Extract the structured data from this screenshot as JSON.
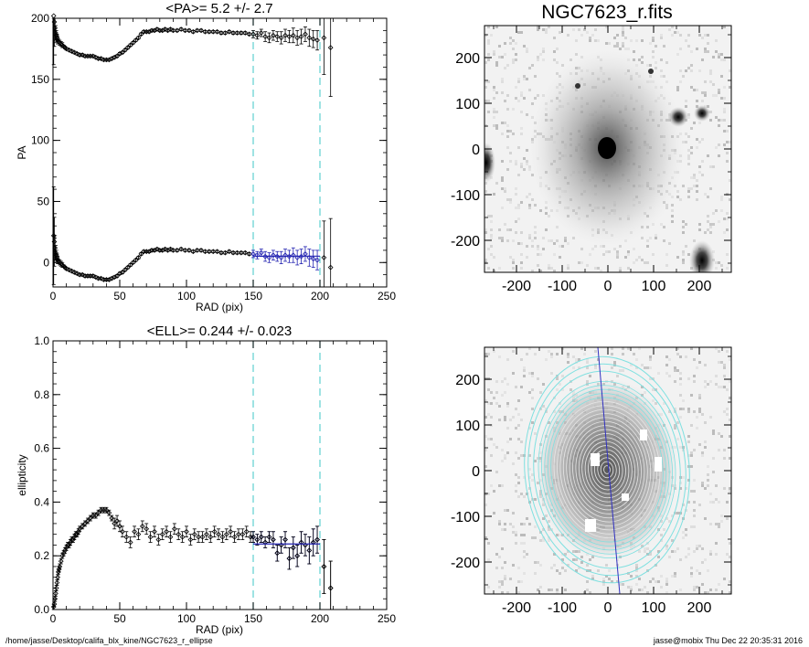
{
  "chart_data": [
    {
      "type": "scatter",
      "title": "<PA>=   5.2 +/-   2.7",
      "xlabel": "RAD (pix)",
      "ylabel": "PA",
      "xlim": [
        0,
        250
      ],
      "ylim": [
        -20,
        200
      ],
      "xticks": [
        "0",
        "50",
        "100",
        "150",
        "200",
        "250"
      ],
      "yticks": [
        "0",
        "50",
        "100",
        "150",
        "200"
      ],
      "vlines": [
        150,
        200
      ],
      "vline_color": "#5fd0d0",
      "mean_line": {
        "x": [
          150,
          200
        ],
        "y": 5.2,
        "color": "#2020b0"
      },
      "series": [
        {
          "color": "#000000",
          "x": [
            0.5,
            1,
            1.5,
            2,
            2.5,
            3,
            3.5,
            4,
            5,
            6,
            7,
            8,
            9,
            10,
            12,
            14,
            16,
            18,
            20,
            22,
            24,
            26,
            28,
            30,
            32,
            34,
            36,
            38,
            40,
            42,
            44,
            46,
            48,
            50,
            52,
            54,
            56,
            58,
            60,
            62,
            64,
            66,
            68,
            70,
            72,
            74,
            76,
            78,
            80,
            82,
            84,
            86,
            88,
            90,
            93,
            96,
            99,
            102,
            105,
            108,
            111,
            114,
            117,
            120,
            123,
            126,
            129,
            132,
            135,
            138,
            141,
            144,
            147
          ],
          "y": [
            22,
            17,
            12,
            8,
            6,
            4,
            2,
            1,
            0,
            -1,
            -2,
            -3,
            -4,
            -5,
            -6,
            -7,
            -8,
            -9,
            -10,
            -10,
            -11,
            -11,
            -11,
            -11,
            -12,
            -13,
            -13,
            -14,
            -14,
            -14,
            -13,
            -12,
            -11,
            -9,
            -8,
            -6,
            -4,
            -2,
            0,
            2,
            4,
            7,
            9,
            9,
            9,
            10,
            10,
            11,
            10,
            10,
            11,
            10,
            11,
            10,
            10,
            11,
            10,
            10,
            9,
            10,
            10,
            9,
            9,
            9,
            9,
            8,
            8,
            9,
            8,
            8,
            8,
            8,
            7
          ],
          "err": [
            40,
            20,
            10,
            6,
            4,
            3,
            3,
            2,
            2,
            2,
            2,
            1,
            1,
            1,
            1,
            1,
            1,
            1,
            1,
            1,
            1,
            1,
            1,
            1,
            1,
            1,
            1,
            1,
            1,
            1,
            1,
            1,
            1,
            1,
            1,
            1,
            1,
            1,
            1,
            1,
            1,
            1,
            1,
            1,
            1,
            1,
            1,
            1,
            1,
            1,
            1,
            1,
            1,
            1,
            1,
            1,
            1,
            1,
            1,
            1,
            1,
            1,
            1,
            1,
            1,
            1,
            1,
            1,
            1,
            1,
            1,
            1,
            1
          ]
        },
        {
          "color": "#2020b0",
          "x": [
            150,
            153,
            156,
            159,
            162,
            165,
            168,
            171,
            174,
            177,
            180,
            183,
            186,
            189,
            192,
            195,
            198
          ],
          "y": [
            7,
            6,
            8,
            5,
            4,
            6,
            5,
            4,
            6,
            5,
            6,
            4,
            5,
            7,
            4,
            3,
            2
          ],
          "err": [
            3,
            3,
            3,
            4,
            4,
            4,
            4,
            5,
            5,
            5,
            6,
            6,
            6,
            6,
            7,
            7,
            8
          ]
        },
        {
          "color": "#000000",
          "x": [
            203,
            208
          ],
          "y": [
            4,
            -4
          ],
          "err": [
            30,
            40
          ]
        },
        {
          "color": "#000000",
          "x": [
            0.5,
            1,
            1.5,
            2,
            2.5,
            3,
            3.5,
            4,
            5,
            6,
            7,
            8,
            9,
            10,
            12,
            14,
            16,
            18,
            20,
            22,
            24,
            26,
            28,
            30,
            32,
            34,
            36,
            38,
            40,
            42,
            44,
            46,
            48,
            50,
            52,
            54,
            56,
            58,
            60,
            62,
            64,
            66,
            68,
            70,
            72,
            74,
            76,
            78,
            80,
            82,
            84,
            86,
            88,
            90,
            93,
            96,
            99,
            102,
            105,
            108,
            111,
            114,
            117,
            120,
            123,
            126,
            129,
            132,
            135,
            138,
            141,
            144,
            147,
            150,
            153,
            156,
            159,
            162,
            165,
            168,
            171,
            174,
            177,
            180,
            183,
            186,
            189,
            192,
            195,
            198,
            203,
            208
          ],
          "y": [
            202,
            197,
            192,
            188,
            186,
            184,
            182,
            181,
            180,
            179,
            178,
            177,
            176,
            175,
            174,
            173,
            172,
            171,
            170,
            170,
            169,
            169,
            169,
            169,
            168,
            167,
            167,
            166,
            166,
            166,
            167,
            168,
            169,
            171,
            172,
            174,
            176,
            178,
            180,
            182,
            184,
            187,
            189,
            189,
            189,
            190,
            190,
            191,
            190,
            190,
            191,
            190,
            191,
            190,
            190,
            191,
            190,
            190,
            189,
            190,
            190,
            189,
            189,
            189,
            189,
            188,
            188,
            189,
            188,
            188,
            188,
            188,
            187,
            187,
            186,
            188,
            185,
            184,
            186,
            185,
            184,
            186,
            185,
            186,
            184,
            185,
            187,
            184,
            183,
            182,
            184,
            176
          ],
          "err": [
            40,
            20,
            10,
            6,
            4,
            3,
            3,
            2,
            2,
            2,
            2,
            1,
            1,
            1,
            1,
            1,
            1,
            1,
            1,
            1,
            1,
            1,
            1,
            1,
            1,
            1,
            1,
            1,
            1,
            1,
            1,
            1,
            1,
            1,
            1,
            1,
            1,
            1,
            1,
            1,
            1,
            1,
            1,
            1,
            1,
            1,
            1,
            1,
            1,
            1,
            1,
            1,
            1,
            1,
            1,
            1,
            1,
            1,
            1,
            1,
            1,
            1,
            1,
            1,
            1,
            1,
            1,
            1,
            1,
            1,
            1,
            1,
            1,
            3,
            3,
            3,
            4,
            4,
            4,
            4,
            5,
            5,
            5,
            6,
            6,
            6,
            6,
            7,
            7,
            8,
            30,
            40
          ]
        }
      ]
    },
    {
      "type": "scatter",
      "title": "<ELL>= 0.244 +/-  0.023",
      "xlabel": "RAD (pix)",
      "ylabel": "ellipticity",
      "xlim": [
        0,
        250
      ],
      "ylim": [
        0,
        1
      ],
      "xticks": [
        "0",
        "50",
        "100",
        "150",
        "200",
        "250"
      ],
      "yticks": [
        "0.0",
        "0.2",
        "0.4",
        "0.6",
        "0.8",
        "1.0"
      ],
      "vlines": [
        150,
        200
      ],
      "vline_color": "#5fd0d0",
      "mean_line": {
        "x": [
          150,
          200
        ],
        "y": 0.244,
        "color": "#2020b0"
      },
      "series": [
        {
          "color": "#000000",
          "x": [
            0.5,
            1,
            1.5,
            2,
            2.5,
            3,
            3.5,
            4,
            4.5,
            5,
            6,
            7,
            8,
            9,
            10,
            11,
            12,
            13,
            14,
            15,
            16,
            17,
            18,
            19,
            20,
            22,
            24,
            26,
            28,
            30,
            32,
            34,
            36,
            38,
            40,
            42,
            44,
            46,
            48,
            50,
            52,
            55,
            58,
            61,
            64,
            67,
            70,
            73,
            76,
            79,
            82,
            85,
            88,
            91,
            94,
            97,
            100,
            103,
            106,
            109,
            112,
            115,
            118,
            121,
            124,
            127,
            130,
            133,
            136,
            139,
            142,
            145,
            148
          ],
          "y": [
            0.01,
            0.02,
            0.04,
            0.06,
            0.08,
            0.1,
            0.12,
            0.14,
            0.15,
            0.16,
            0.18,
            0.2,
            0.21,
            0.22,
            0.23,
            0.24,
            0.24,
            0.25,
            0.26,
            0.26,
            0.27,
            0.28,
            0.28,
            0.29,
            0.3,
            0.31,
            0.32,
            0.33,
            0.34,
            0.35,
            0.35,
            0.36,
            0.37,
            0.37,
            0.37,
            0.36,
            0.34,
            0.32,
            0.33,
            0.31,
            0.29,
            0.27,
            0.25,
            0.29,
            0.28,
            0.31,
            0.3,
            0.27,
            0.29,
            0.26,
            0.28,
            0.29,
            0.27,
            0.3,
            0.28,
            0.27,
            0.29,
            0.26,
            0.28,
            0.27,
            0.27,
            0.28,
            0.27,
            0.29,
            0.28,
            0.27,
            0.28,
            0.29,
            0.27,
            0.28,
            0.28,
            0.29,
            0.27
          ],
          "err": [
            0.01,
            0.01,
            0.01,
            0.01,
            0.01,
            0.01,
            0.01,
            0.01,
            0.01,
            0.01,
            0.01,
            0.01,
            0.01,
            0.01,
            0.01,
            0.01,
            0.01,
            0.01,
            0.01,
            0.01,
            0.01,
            0.01,
            0.01,
            0.01,
            0.01,
            0.01,
            0.01,
            0.01,
            0.01,
            0.01,
            0.01,
            0.01,
            0.01,
            0.01,
            0.01,
            0.01,
            0.01,
            0.02,
            0.02,
            0.02,
            0.02,
            0.02,
            0.02,
            0.02,
            0.02,
            0.02,
            0.02,
            0.02,
            0.02,
            0.02,
            0.02,
            0.02,
            0.02,
            0.02,
            0.02,
            0.02,
            0.02,
            0.02,
            0.02,
            0.02,
            0.02,
            0.02,
            0.02,
            0.02,
            0.02,
            0.02,
            0.02,
            0.02,
            0.02,
            0.02,
            0.02,
            0.02,
            0.02
          ]
        },
        {
          "color": "#2020b0",
          "x": [
            150,
            153,
            156,
            159,
            162,
            165,
            168,
            171,
            174,
            177,
            180,
            183,
            186,
            189,
            192,
            195,
            198
          ],
          "y": [
            0.27,
            0.26,
            0.27,
            0.25,
            0.27,
            0.26,
            0.21,
            0.24,
            0.26,
            0.19,
            0.23,
            0.2,
            0.25,
            0.24,
            0.22,
            0.25,
            0.26
          ],
          "err": [
            0.02,
            0.02,
            0.02,
            0.02,
            0.02,
            0.03,
            0.03,
            0.03,
            0.03,
            0.04,
            0.04,
            0.04,
            0.04,
            0.04,
            0.05,
            0.05,
            0.05
          ]
        },
        {
          "color": "#000000",
          "x": [
            203,
            208
          ],
          "y": [
            0.16,
            0.08
          ],
          "err": [
            0.1,
            0.1
          ]
        },
        {
          "color": "#000000",
          "x": [
            150,
            153,
            156,
            159,
            162,
            165,
            168,
            171,
            174,
            177,
            180,
            183,
            186,
            189,
            192,
            195,
            198,
            203,
            208
          ],
          "y": [
            0.27,
            0.26,
            0.27,
            0.25,
            0.27,
            0.26,
            0.21,
            0.24,
            0.26,
            0.19,
            0.23,
            0.2,
            0.25,
            0.24,
            0.22,
            0.25,
            0.26,
            0.16,
            0.08
          ],
          "err": [
            0.02,
            0.02,
            0.02,
            0.02,
            0.02,
            0.03,
            0.03,
            0.03,
            0.03,
            0.04,
            0.04,
            0.04,
            0.04,
            0.04,
            0.05,
            0.05,
            0.05,
            0.1,
            0.1
          ]
        }
      ]
    }
  ],
  "image_panels": {
    "top": {
      "title": "NGC7623_r.fits",
      "xticks": [
        "-200",
        "-100",
        "0",
        "100",
        "200"
      ],
      "yticks": [
        "200",
        "100",
        "0",
        "-100",
        "-200"
      ]
    },
    "bottom": {
      "xticks": [
        "-200",
        "-100",
        "0",
        "100",
        "200"
      ],
      "yticks": [
        "200",
        "100",
        "0",
        "-100",
        "-200"
      ],
      "contour_color": "#7fe0e0",
      "axis_line_color": "#3030c0"
    }
  },
  "footer": {
    "path": "/home/jasse/Desktop/califa_blx_kine/NGC7623_r_ellipse",
    "stamp": "jasse@mobix  Thu Dec 22 20:35:31 2016"
  }
}
